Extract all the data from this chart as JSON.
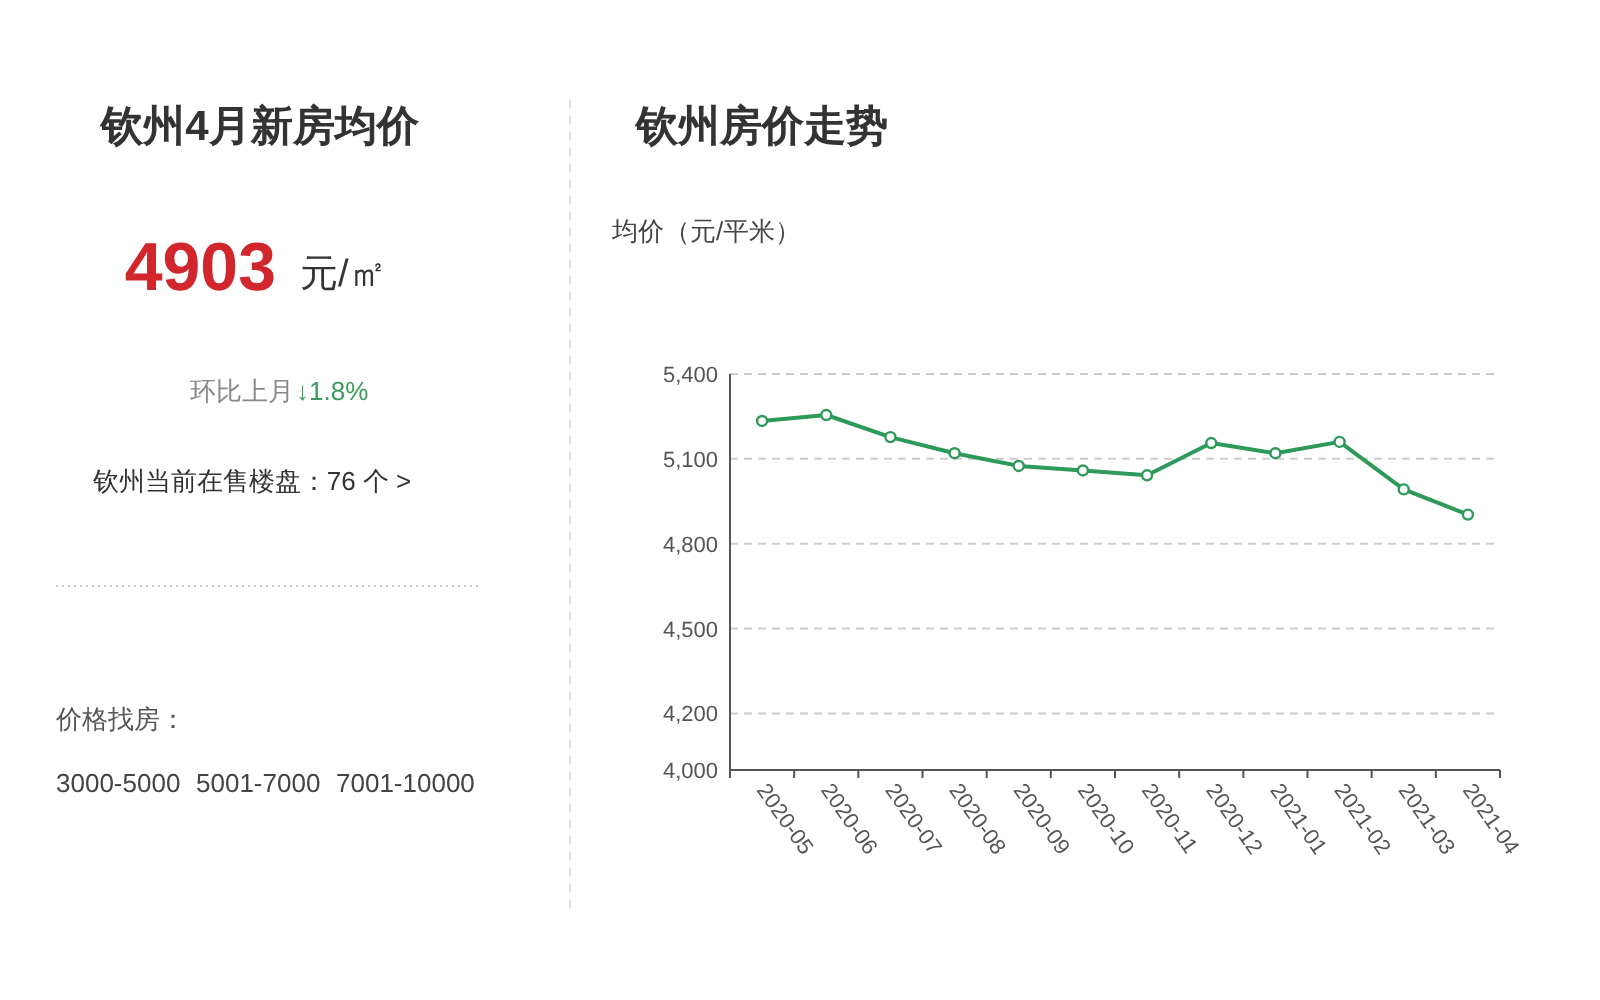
{
  "chart_data": [
    {
      "type": "other",
      "title": "钦州4月新房均价",
      "annotations": [
        "4903",
        "元/㎡",
        "环比上月",
        "↓1.8%",
        "钦州当前在售楼盘：76 个 >",
        "价格找房：",
        "3000-5000",
        "5001-7000",
        "7001-10000"
      ]
    },
    {
      "type": "line",
      "title": "钦州房价走势",
      "ylabel": "均价（元/平米）",
      "categories": [
        "2020-05",
        "2020-06",
        "2020-07",
        "2020-08",
        "2020-09",
        "2020-10",
        "2020-11",
        "2020-12",
        "2021-01",
        "2021-02",
        "2021-03",
        "2021-04"
      ],
      "series": [
        {
          "color": "#2e9a5a",
          "values": [
            5234,
            5255,
            5177,
            5120,
            5075,
            5059,
            5042,
            5156,
            5120,
            5160,
            4992,
            4903
          ]
        }
      ],
      "ylim": [
        4000,
        5400
      ],
      "yticks": [
        {
          "value": 4000,
          "label": "4,000"
        },
        {
          "value": 4200,
          "label": "4,200"
        },
        {
          "value": 4500,
          "label": "4,500"
        },
        {
          "value": 4800,
          "label": "4,800"
        },
        {
          "value": 5100,
          "label": "5,100"
        },
        {
          "value": 5400,
          "label": "5,400"
        }
      ],
      "grid": "y",
      "marker": "circle",
      "line_style": "solid"
    }
  ]
}
